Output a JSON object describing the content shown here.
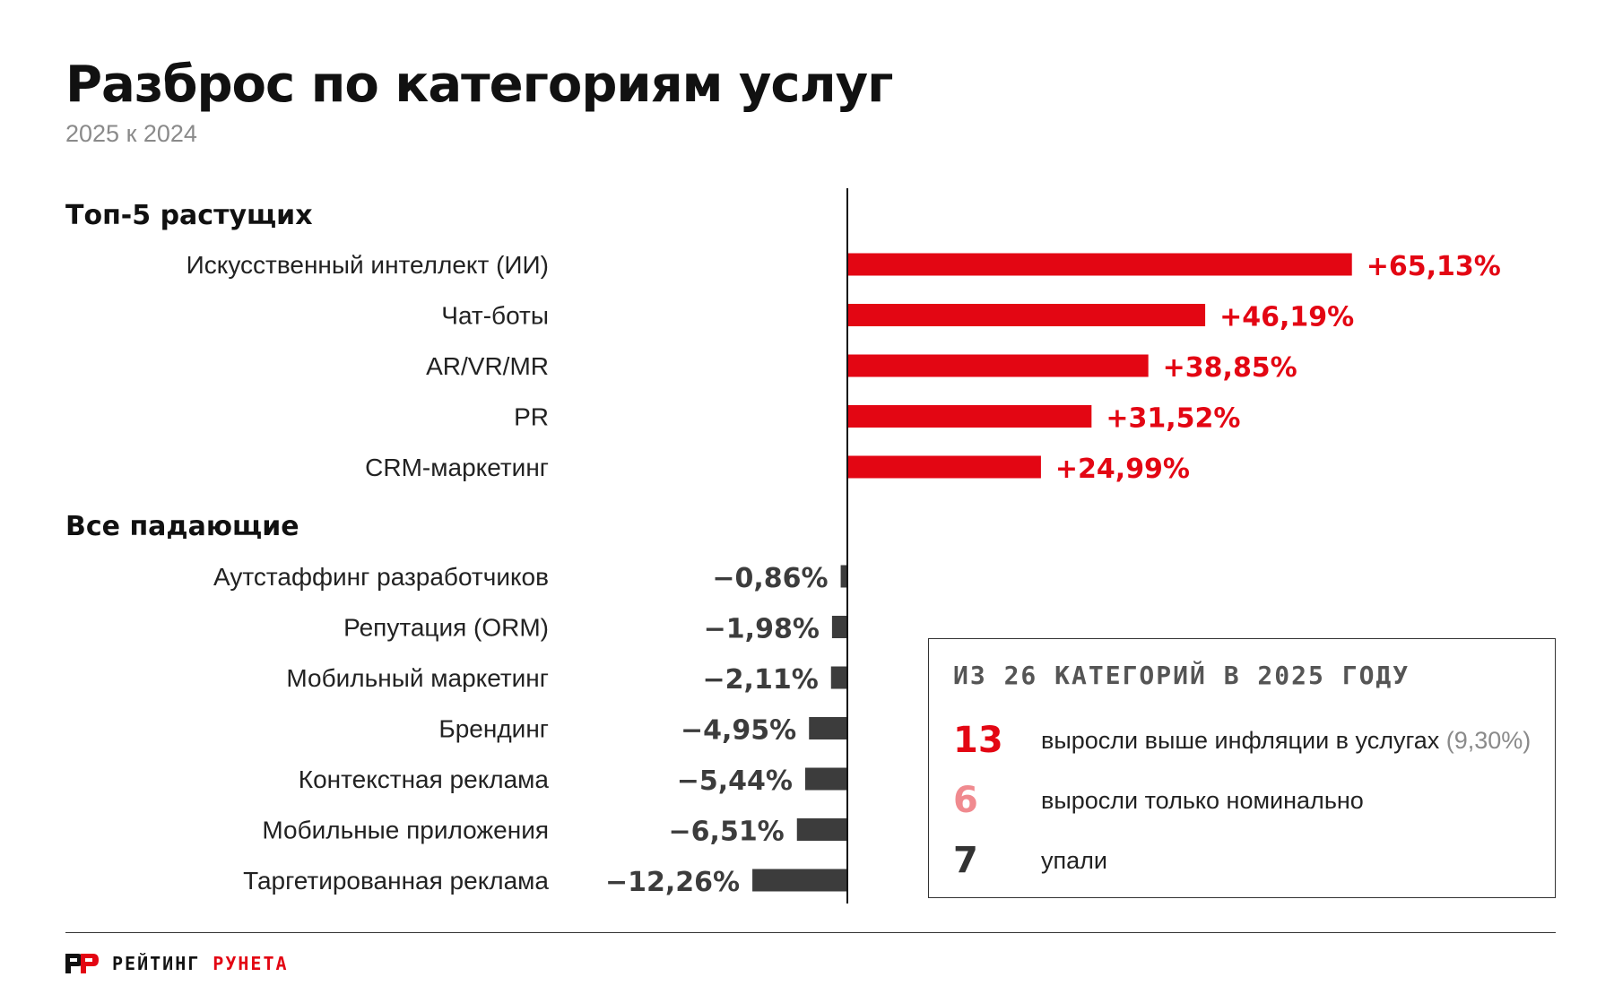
{
  "title": "Разброс по категориям услуг",
  "subtitle": "2025 к 2024",
  "colors": {
    "positive": "#e30613",
    "negative": "#3c3c3c",
    "axis": "#111111",
    "muted": "#8a8a8a",
    "summary_light": "#f08a8f"
  },
  "chart_data": {
    "type": "bar",
    "orientation": "horizontal",
    "unit": "%",
    "groups": [
      {
        "name": "Топ-5 растущих",
        "categories": [
          "Искусственный интеллект (ИИ)",
          "Чат-боты",
          "AR/VR/MR",
          "PR",
          "CRM-маркетинг"
        ],
        "values": [
          65.13,
          46.19,
          38.85,
          31.52,
          24.99
        ],
        "labels": [
          "+65,13%",
          "+46,19%",
          "+38,85%",
          "+31,52%",
          "+24,99%"
        ]
      },
      {
        "name": "Все падающие",
        "categories": [
          "Аутстаффинг разработчиков",
          "Репутация (ORM)",
          "Мобильный маркетинг",
          "Брендинг",
          "Контекстная реклама",
          "Мобильные приложения",
          "Таргетированная реклама"
        ],
        "values": [
          -0.86,
          -1.98,
          -2.11,
          -4.95,
          -5.44,
          -6.51,
          -12.26
        ],
        "labels": [
          "−0,86%",
          "−1,98%",
          "−2,11%",
          "−4,95%",
          "−5,44%",
          "−6,51%",
          "−12,26%"
        ]
      }
    ]
  },
  "summary": {
    "title": "ИЗ 26 КАТЕГОРИЙ В 2025 ГОДУ",
    "rows": [
      {
        "number": "13",
        "text": "выросли выше инфляции в услугах",
        "note": "(9,30%)"
      },
      {
        "number": "6",
        "text": "выросли только номинально",
        "note": ""
      },
      {
        "number": "7",
        "text": "упали",
        "note": ""
      }
    ]
  },
  "footer": {
    "logo_left": "РЕЙТИНГ",
    "logo_right": "РУНЕТА"
  }
}
